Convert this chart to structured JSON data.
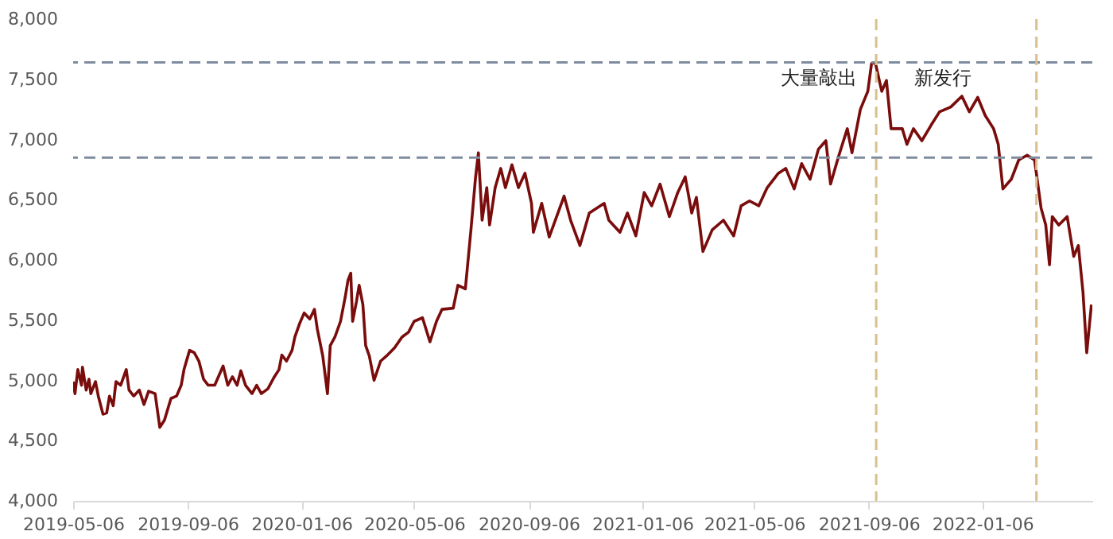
{
  "chart_data": {
    "type": "line",
    "x": [
      "2019-05-06",
      "2019-05-08",
      "2019-05-11",
      "2019-05-15",
      "2019-05-16",
      "2019-05-20",
      "2019-05-23",
      "2019-05-25",
      "2019-05-30",
      "2019-06-02",
      "2019-06-07",
      "2019-06-11",
      "2019-06-14",
      "2019-06-18",
      "2019-06-21",
      "2019-06-26",
      "2019-07-02",
      "2019-07-05",
      "2019-07-10",
      "2019-07-16",
      "2019-07-21",
      "2019-07-26",
      "2019-08-02",
      "2019-08-07",
      "2019-08-12",
      "2019-08-19",
      "2019-08-25",
      "2019-08-30",
      "2019-09-02",
      "2019-09-08",
      "2019-09-13",
      "2019-09-18",
      "2019-09-23",
      "2019-09-28",
      "2019-10-05",
      "2019-10-14",
      "2019-10-19",
      "2019-10-24",
      "2019-10-29",
      "2019-11-02",
      "2019-11-07",
      "2019-11-14",
      "2019-11-19",
      "2019-11-24",
      "2019-12-01",
      "2019-12-08",
      "2019-12-13",
      "2019-12-16",
      "2019-12-21",
      "2019-12-27",
      "2019-12-30",
      "2020-01-04",
      "2020-01-09",
      "2020-01-15",
      "2020-01-20",
      "2020-01-23",
      "2020-01-29",
      "2020-02-03",
      "2020-02-06",
      "2020-02-11",
      "2020-02-17",
      "2020-02-22",
      "2020-02-25",
      "2020-02-28",
      "2020-03-01",
      "2020-03-05",
      "2020-03-08",
      "2020-03-12",
      "2020-03-15",
      "2020-03-19",
      "2020-03-24",
      "2020-03-31",
      "2020-04-06",
      "2020-04-15",
      "2020-04-23",
      "2020-04-30",
      "2020-05-06",
      "2020-05-15",
      "2020-05-23",
      "2020-05-30",
      "2020-06-05",
      "2020-06-17",
      "2020-06-22",
      "2020-06-30",
      "2020-07-06",
      "2020-07-11",
      "2020-07-14",
      "2020-07-18",
      "2020-07-23",
      "2020-07-26",
      "2020-08-01",
      "2020-08-07",
      "2020-08-12",
      "2020-08-19",
      "2020-08-26",
      "2020-09-02",
      "2020-09-09",
      "2020-09-11",
      "2020-09-20",
      "2020-09-28",
      "2020-10-14",
      "2020-10-21",
      "2020-10-31",
      "2020-11-10",
      "2020-11-26",
      "2020-12-01",
      "2020-12-13",
      "2020-12-21",
      "2020-12-30",
      "2021-01-08",
      "2021-01-16",
      "2021-01-25",
      "2021-02-04",
      "2021-02-13",
      "2021-02-21",
      "2021-02-28",
      "2021-03-05",
      "2021-03-12",
      "2021-03-22",
      "2021-04-03",
      "2021-04-14",
      "2021-04-22",
      "2021-05-01",
      "2021-05-11",
      "2021-05-20",
      "2021-06-01",
      "2021-06-09",
      "2021-06-18",
      "2021-06-26",
      "2021-07-05",
      "2021-07-14",
      "2021-07-22",
      "2021-07-27",
      "2021-08-05",
      "2021-08-14",
      "2021-08-19",
      "2021-08-28",
      "2021-09-05",
      "2021-09-09",
      "2021-09-13",
      "2021-09-20",
      "2021-09-25",
      "2021-09-30",
      "2021-10-12",
      "2021-10-17",
      "2021-10-24",
      "2021-11-02",
      "2021-11-12",
      "2021-11-21",
      "2021-12-03",
      "2021-12-15",
      "2021-12-23",
      "2022-01-01",
      "2022-01-09",
      "2022-01-18",
      "2022-01-23",
      "2022-01-28",
      "2022-02-06",
      "2022-02-14",
      "2022-02-23",
      "2022-03-03",
      "2022-03-10",
      "2022-03-15",
      "2022-03-19",
      "2022-03-22",
      "2022-03-29",
      "2022-04-07",
      "2022-04-14",
      "2022-04-19",
      "2022-04-24",
      "2022-04-28",
      "2022-05-03"
    ],
    "series": [
      {
        "color": "#7a0c0c",
        "values": [
          4990,
          4890,
          5090,
          4960,
          5110,
          4920,
          5010,
          4890,
          4990,
          4870,
          4720,
          4730,
          4870,
          4790,
          4990,
          4960,
          5090,
          4920,
          4870,
          4920,
          4800,
          4910,
          4890,
          4610,
          4670,
          4850,
          4870,
          4960,
          5090,
          5250,
          5230,
          5160,
          5010,
          4960,
          4960,
          5120,
          4960,
          5030,
          4960,
          5080,
          4960,
          4890,
          4960,
          4890,
          4930,
          5030,
          5090,
          5210,
          5160,
          5250,
          5360,
          5470,
          5560,
          5510,
          5590,
          5430,
          5200,
          4890,
          5290,
          5360,
          5490,
          5690,
          5830,
          5890,
          5490,
          5650,
          5790,
          5630,
          5290,
          5200,
          5000,
          5160,
          5200,
          5270,
          5360,
          5400,
          5490,
          5520,
          5320,
          5490,
          5590,
          5600,
          5790,
          5760,
          6250,
          6690,
          6890,
          6330,
          6600,
          6290,
          6600,
          6760,
          6600,
          6790,
          6600,
          6720,
          6470,
          6230,
          6470,
          6190,
          6530,
          6330,
          6120,
          6390,
          6470,
          6330,
          6230,
          6390,
          6200,
          6560,
          6450,
          6630,
          6360,
          6560,
          6690,
          6390,
          6520,
          6070,
          6250,
          6330,
          6200,
          6450,
          6490,
          6450,
          6600,
          6720,
          6760,
          6590,
          6800,
          6670,
          6920,
          6990,
          6630,
          6870,
          7090,
          6890,
          7250,
          7400,
          7630,
          7640,
          7400,
          7490,
          7090,
          7090,
          6960,
          7090,
          6990,
          7120,
          7230,
          7270,
          7360,
          7230,
          7350,
          7200,
          7090,
          6960,
          6590,
          6670,
          6830,
          6870,
          6830,
          6430,
          6290,
          5960,
          6360,
          6290,
          6360,
          6030,
          6120,
          5730,
          5230,
          5630
        ]
      }
    ],
    "xlim": [
      "2019-05-06",
      "2022-05-04"
    ],
    "xticks": [
      "2019-05-06",
      "2019-09-06",
      "2020-01-06",
      "2020-05-06",
      "2020-09-06",
      "2021-01-06",
      "2021-05-06",
      "2021-09-06",
      "2022-01-06"
    ],
    "ylim": [
      4000,
      8000
    ],
    "yticks": [
      {
        "value": 4000,
        "label": "4,000"
      },
      {
        "value": 4500,
        "label": "4,500"
      },
      {
        "value": 5000,
        "label": "5,000"
      },
      {
        "value": 5500,
        "label": "5,500"
      },
      {
        "value": 6000,
        "label": "6,000"
      },
      {
        "value": 6500,
        "label": "6,500"
      },
      {
        "value": 7000,
        "label": "7,000"
      },
      {
        "value": 7500,
        "label": "7,500"
      },
      {
        "value": 8000,
        "label": "8,000"
      }
    ],
    "ref_lines": [
      {
        "axis": "y",
        "value": 7640,
        "color": "#7f8c9f",
        "line_style": "dashed"
      },
      {
        "axis": "y",
        "value": 6850,
        "color": "#7f8c9f",
        "line_style": "dashed"
      },
      {
        "axis": "x",
        "value": "2021-09-14",
        "color": "#d9c08c",
        "line_style": "dashed"
      },
      {
        "axis": "x",
        "value": "2022-03-05",
        "color": "#d9c08c",
        "line_style": "dashed"
      }
    ],
    "annotations": [
      "大量敲出",
      "新发行"
    ],
    "grid": false,
    "line_style": "solid"
  }
}
